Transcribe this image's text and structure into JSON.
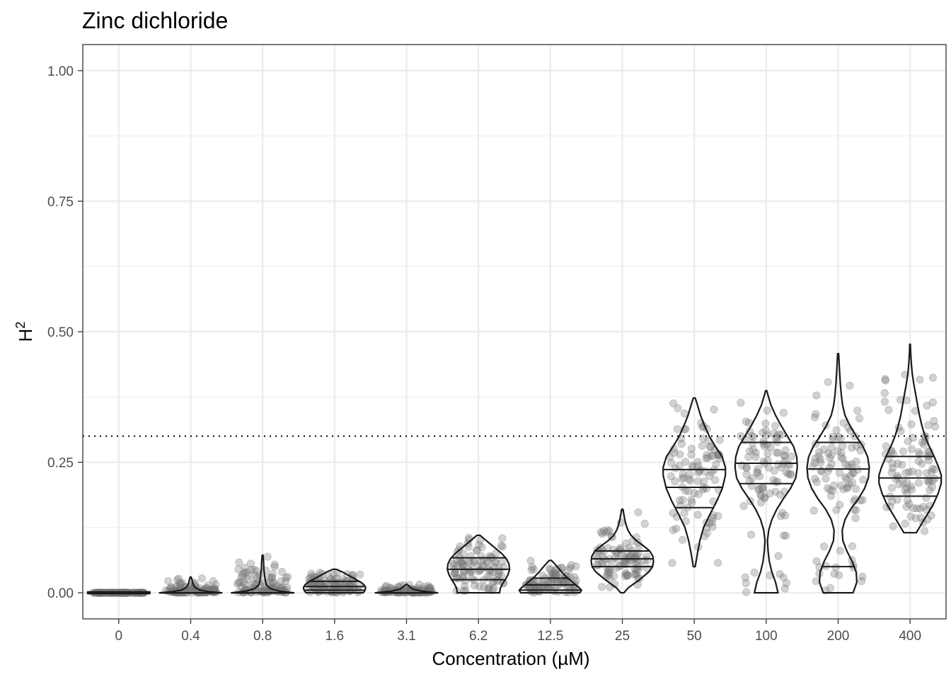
{
  "chart_data": {
    "type": "violin",
    "title": "Zinc dichloride",
    "xlabel": "Concentration (µM)",
    "ylabel": "H",
    "ylabel_superscript": "2",
    "ylim": [
      -0.05,
      1.05
    ],
    "y_ticks": [
      "0.00",
      "0.25",
      "0.50",
      "0.75",
      "1.00"
    ],
    "y_tick_values": [
      0,
      0.25,
      0.5,
      0.75,
      1.0
    ],
    "reference_line": 0.3,
    "categories": [
      "0",
      "0.4",
      "0.8",
      "1.6",
      "3.1",
      "6.2",
      "12.5",
      "25",
      "50",
      "100",
      "200",
      "400"
    ],
    "groups": [
      {
        "label": "0",
        "min": 0.0,
        "max": 0.0,
        "quantiles": [
          0.0,
          0.0,
          0.0
        ],
        "density": [
          [
            0.0,
            1.0
          ]
        ]
      },
      {
        "label": "0.4",
        "min": 0.0,
        "max": 0.03,
        "quantiles": [
          0.0,
          0.0,
          0.0
        ],
        "density": [
          [
            0.0,
            1.0
          ],
          [
            0.002,
            0.6
          ],
          [
            0.005,
            0.3
          ],
          [
            0.01,
            0.14
          ],
          [
            0.015,
            0.09
          ],
          [
            0.02,
            0.06
          ],
          [
            0.025,
            0.04
          ],
          [
            0.03,
            0.015
          ]
        ]
      },
      {
        "label": "0.8",
        "min": 0.0,
        "max": 0.072,
        "quantiles": [
          0.0,
          0.0,
          0.0
        ],
        "density": [
          [
            0.0,
            1.0
          ],
          [
            0.003,
            0.55
          ],
          [
            0.008,
            0.25
          ],
          [
            0.015,
            0.12
          ],
          [
            0.025,
            0.08
          ],
          [
            0.035,
            0.06
          ],
          [
            0.045,
            0.04
          ],
          [
            0.06,
            0.03
          ],
          [
            0.072,
            0.012
          ]
        ]
      },
      {
        "label": "1.6",
        "min": 0.0,
        "max": 0.045,
        "quantiles": [
          0.005,
          0.012,
          0.022
        ],
        "density": [
          [
            0.0,
            0.92
          ],
          [
            0.005,
            0.98
          ],
          [
            0.01,
            1.0
          ],
          [
            0.015,
            0.95
          ],
          [
            0.02,
            0.85
          ],
          [
            0.025,
            0.7
          ],
          [
            0.03,
            0.55
          ],
          [
            0.035,
            0.4
          ],
          [
            0.04,
            0.25
          ],
          [
            0.045,
            0.05
          ]
        ]
      },
      {
        "label": "3.1",
        "min": 0.0,
        "max": 0.016,
        "quantiles": [
          0.0,
          0.0,
          0.0
        ],
        "density": [
          [
            0.0,
            1.0
          ],
          [
            0.003,
            0.5
          ],
          [
            0.007,
            0.2
          ],
          [
            0.012,
            0.09
          ],
          [
            0.016,
            0.02
          ]
        ]
      },
      {
        "label": "6.2",
        "min": 0.0,
        "max": 0.11,
        "quantiles": [
          0.025,
          0.045,
          0.067
        ],
        "density": [
          [
            0.0,
            0.68
          ],
          [
            0.008,
            0.7
          ],
          [
            0.016,
            0.76
          ],
          [
            0.025,
            0.86
          ],
          [
            0.035,
            0.95
          ],
          [
            0.045,
            1.0
          ],
          [
            0.055,
            0.98
          ],
          [
            0.065,
            0.9
          ],
          [
            0.075,
            0.75
          ],
          [
            0.085,
            0.55
          ],
          [
            0.095,
            0.35
          ],
          [
            0.105,
            0.15
          ],
          [
            0.11,
            0.05
          ]
        ]
      },
      {
        "label": "12.5",
        "min": 0.0,
        "max": 0.062,
        "quantiles": [
          0.005,
          0.015,
          0.028
        ],
        "density": [
          [
            0.0,
            0.95
          ],
          [
            0.005,
            1.0
          ],
          [
            0.01,
            0.92
          ],
          [
            0.02,
            0.72
          ],
          [
            0.03,
            0.52
          ],
          [
            0.04,
            0.36
          ],
          [
            0.05,
            0.22
          ],
          [
            0.058,
            0.1
          ],
          [
            0.062,
            0.03
          ]
        ]
      },
      {
        "label": "25",
        "min": 0.0,
        "max": 0.16,
        "quantiles": [
          0.05,
          0.065,
          0.08
        ],
        "density": [
          [
            0.0,
            0.05
          ],
          [
            0.01,
            0.2
          ],
          [
            0.025,
            0.55
          ],
          [
            0.04,
            0.85
          ],
          [
            0.05,
            0.97
          ],
          [
            0.06,
            1.0
          ],
          [
            0.07,
            0.98
          ],
          [
            0.08,
            0.88
          ],
          [
            0.09,
            0.68
          ],
          [
            0.1,
            0.45
          ],
          [
            0.11,
            0.28
          ],
          [
            0.12,
            0.18
          ],
          [
            0.13,
            0.12
          ],
          [
            0.14,
            0.08
          ],
          [
            0.15,
            0.05
          ],
          [
            0.16,
            0.02
          ]
        ]
      },
      {
        "label": "50",
        "min": 0.05,
        "max": 0.373,
        "quantiles": [
          0.163,
          0.202,
          0.236
        ],
        "density": [
          [
            0.05,
            0.03
          ],
          [
            0.075,
            0.1
          ],
          [
            0.1,
            0.18
          ],
          [
            0.125,
            0.3
          ],
          [
            0.15,
            0.5
          ],
          [
            0.175,
            0.72
          ],
          [
            0.2,
            0.9
          ],
          [
            0.225,
            1.0
          ],
          [
            0.24,
            1.0
          ],
          [
            0.26,
            0.9
          ],
          [
            0.28,
            0.68
          ],
          [
            0.3,
            0.48
          ],
          [
            0.32,
            0.33
          ],
          [
            0.34,
            0.2
          ],
          [
            0.36,
            0.1
          ],
          [
            0.373,
            0.03
          ]
        ]
      },
      {
        "label": "100",
        "min": 0.0,
        "max": 0.387,
        "quantiles": [
          0.209,
          0.248,
          0.288
        ],
        "density": [
          [
            0.0,
            0.38
          ],
          [
            0.02,
            0.3
          ],
          [
            0.04,
            0.18
          ],
          [
            0.06,
            0.1
          ],
          [
            0.08,
            0.06
          ],
          [
            0.1,
            0.04
          ],
          [
            0.12,
            0.08
          ],
          [
            0.14,
            0.18
          ],
          [
            0.16,
            0.34
          ],
          [
            0.18,
            0.55
          ],
          [
            0.2,
            0.78
          ],
          [
            0.22,
            0.95
          ],
          [
            0.24,
            1.0
          ],
          [
            0.26,
            0.98
          ],
          [
            0.28,
            0.88
          ],
          [
            0.3,
            0.68
          ],
          [
            0.32,
            0.48
          ],
          [
            0.34,
            0.3
          ],
          [
            0.36,
            0.15
          ],
          [
            0.38,
            0.05
          ],
          [
            0.387,
            0.02
          ]
        ]
      },
      {
        "label": "200",
        "min": 0.0,
        "max": 0.458,
        "quantiles": [
          0.05,
          0.237,
          0.288
        ],
        "density": [
          [
            0.0,
            0.48
          ],
          [
            0.02,
            0.6
          ],
          [
            0.04,
            0.58
          ],
          [
            0.06,
            0.45
          ],
          [
            0.08,
            0.28
          ],
          [
            0.1,
            0.15
          ],
          [
            0.12,
            0.13
          ],
          [
            0.14,
            0.22
          ],
          [
            0.16,
            0.4
          ],
          [
            0.18,
            0.65
          ],
          [
            0.2,
            0.85
          ],
          [
            0.22,
            0.97
          ],
          [
            0.24,
            1.0
          ],
          [
            0.26,
            0.95
          ],
          [
            0.28,
            0.8
          ],
          [
            0.3,
            0.58
          ],
          [
            0.32,
            0.38
          ],
          [
            0.34,
            0.22
          ],
          [
            0.36,
            0.14
          ],
          [
            0.38,
            0.1
          ],
          [
            0.4,
            0.07
          ],
          [
            0.43,
            0.04
          ],
          [
            0.458,
            0.015
          ]
        ]
      },
      {
        "label": "400",
        "min": 0.115,
        "max": 0.476,
        "quantiles": [
          0.185,
          0.22,
          0.261
        ],
        "density": [
          [
            0.115,
            0.2
          ],
          [
            0.13,
            0.35
          ],
          [
            0.15,
            0.55
          ],
          [
            0.17,
            0.75
          ],
          [
            0.19,
            0.9
          ],
          [
            0.21,
            1.0
          ],
          [
            0.225,
            1.0
          ],
          [
            0.24,
            0.92
          ],
          [
            0.26,
            0.78
          ],
          [
            0.28,
            0.62
          ],
          [
            0.3,
            0.48
          ],
          [
            0.32,
            0.38
          ],
          [
            0.34,
            0.3
          ],
          [
            0.36,
            0.24
          ],
          [
            0.38,
            0.18
          ],
          [
            0.4,
            0.12
          ],
          [
            0.42,
            0.07
          ],
          [
            0.44,
            0.04
          ],
          [
            0.46,
            0.02
          ],
          [
            0.476,
            0.01
          ]
        ]
      }
    ]
  }
}
